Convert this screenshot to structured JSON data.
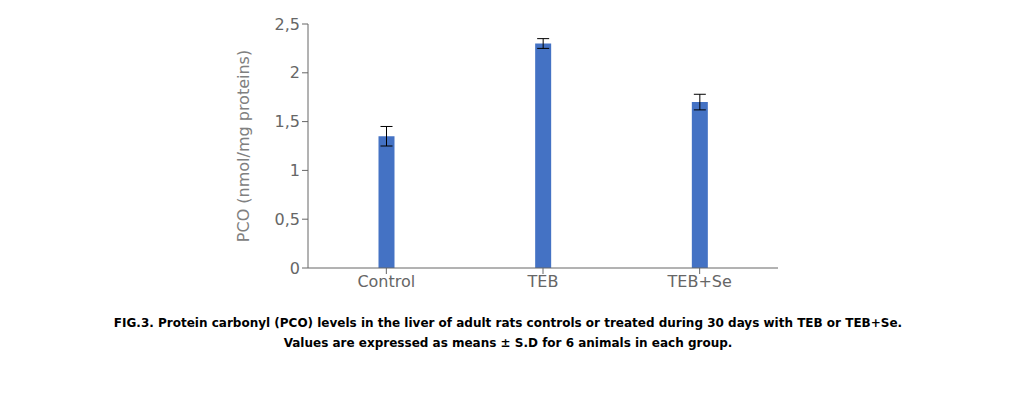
{
  "chart_data": {
    "type": "bar",
    "categories": [
      "Control",
      "TEB",
      "TEB+Se"
    ],
    "values": [
      1.35,
      2.3,
      1.7
    ],
    "errors": [
      0.1,
      0.05,
      0.08
    ],
    "color": "#4472C4",
    "ylabel": "PCO (nmol/mg proteins)",
    "ylim": [
      0,
      2.5
    ],
    "yticks": [
      0,
      {
        "value": 0.5,
        "label": "0,5"
      },
      1,
      {
        "value": 1.5,
        "label": "1,5"
      },
      2,
      {
        "value": 2.5,
        "label": "2,5"
      }
    ],
    "grid": false,
    "annotations": [
      "FIG.3. Protein carbonyl (PCO) levels in the liver of adult rats controls or treated during 30 days with TEB or TEB+Se.",
      "Values are expressed as means ± S.D for 6 animals in each group."
    ]
  }
}
